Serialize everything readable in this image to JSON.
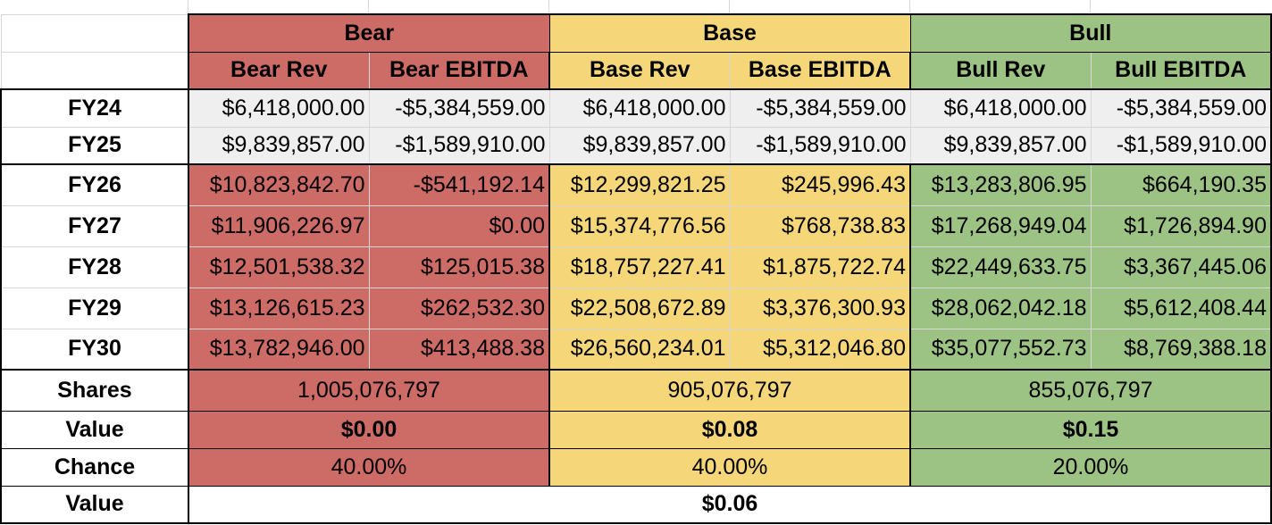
{
  "scenarios": [
    {
      "name": "Bear",
      "rev_label": "Bear Rev",
      "ebitda_label": "Bear EBITDA",
      "color": "#cd6b66"
    },
    {
      "name": "Base",
      "rev_label": "Base Rev",
      "ebitda_label": "Base EBITDA",
      "color": "#f5d77a"
    },
    {
      "name": "Bull",
      "rev_label": "Bull Rev",
      "ebitda_label": "Bull EBITDA",
      "color": "#9dc384"
    }
  ],
  "historical_color": "#efefef",
  "rows": [
    {
      "year": "FY24",
      "historical": true,
      "cells": [
        "$6,418,000.00",
        "-$5,384,559.00",
        "$6,418,000.00",
        "-$5,384,559.00",
        "$6,418,000.00",
        "-$5,384,559.00"
      ]
    },
    {
      "year": "FY25",
      "historical": true,
      "cells": [
        "$9,839,857.00",
        "-$1,589,910.00",
        "$9,839,857.00",
        "-$1,589,910.00",
        "$9,839,857.00",
        "-$1,589,910.00"
      ]
    },
    {
      "year": "FY26",
      "historical": false,
      "cells": [
        "$10,823,842.70",
        "-$541,192.14",
        "$12,299,821.25",
        "$245,996.43",
        "$13,283,806.95",
        "$664,190.35"
      ]
    },
    {
      "year": "FY27",
      "historical": false,
      "cells": [
        "$11,906,226.97",
        "$0.00",
        "$15,374,776.56",
        "$768,738.83",
        "$17,268,949.04",
        "$1,726,894.90"
      ]
    },
    {
      "year": "FY28",
      "historical": false,
      "cells": [
        "$12,501,538.32",
        "$125,015.38",
        "$18,757,227.41",
        "$1,875,722.74",
        "$22,449,633.75",
        "$3,367,445.06"
      ]
    },
    {
      "year": "FY29",
      "historical": false,
      "cells": [
        "$13,126,615.23",
        "$262,532.30",
        "$22,508,672.89",
        "$3,376,300.93",
        "$28,062,042.18",
        "$5,612,408.44"
      ]
    },
    {
      "year": "FY30",
      "historical": false,
      "cells": [
        "$13,782,946.00",
        "$413,488.38",
        "$26,560,234.01",
        "$5,312,046.80",
        "$35,077,552.73",
        "$8,769,388.18"
      ]
    }
  ],
  "shares": {
    "label": "Shares",
    "values": [
      "1,005,076,797",
      "905,076,797",
      "855,076,797"
    ]
  },
  "value": {
    "label": "Value",
    "values": [
      "$0.00",
      "$0.08",
      "$0.15"
    ]
  },
  "chance": {
    "label": "Chance",
    "values": [
      "40.00%",
      "40.00%",
      "20.00%"
    ]
  },
  "expected_value": {
    "label": "Value",
    "value": "$0.06"
  }
}
